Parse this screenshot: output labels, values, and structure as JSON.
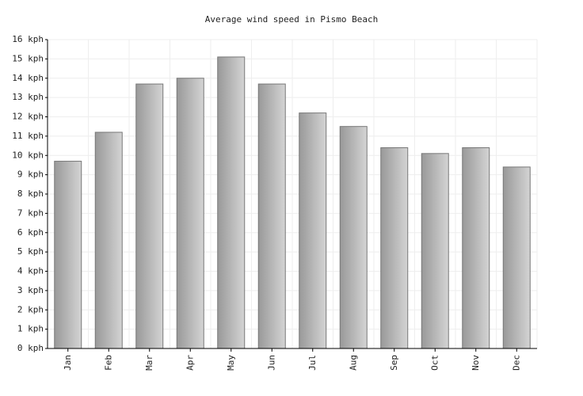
{
  "chart_data": {
    "type": "bar",
    "title": "Average wind speed in Pismo Beach",
    "categories": [
      "Jan",
      "Feb",
      "Mar",
      "Apr",
      "May",
      "Jun",
      "Jul",
      "Aug",
      "Sep",
      "Oct",
      "Nov",
      "Dec"
    ],
    "values": [
      9.7,
      11.2,
      13.7,
      14.0,
      15.1,
      13.7,
      12.2,
      11.5,
      10.4,
      10.1,
      10.4,
      9.4
    ],
    "color": "#999999",
    "ylim": [
      0,
      16
    ],
    "yticks": [
      {
        "value": 0,
        "label": "0 kph"
      },
      {
        "value": 1,
        "label": "1 kph"
      },
      {
        "value": 2,
        "label": "2 kph"
      },
      {
        "value": 3,
        "label": "3 kph"
      },
      {
        "value": 4,
        "label": "4 kph"
      },
      {
        "value": 5,
        "label": "5 kph"
      },
      {
        "value": 6,
        "label": "6 kph"
      },
      {
        "value": 7,
        "label": "7 kph"
      },
      {
        "value": 8,
        "label": "8 kph"
      },
      {
        "value": 9,
        "label": "9 kph"
      },
      {
        "value": 10,
        "label": "10 kph"
      },
      {
        "value": 11,
        "label": "11 kph"
      },
      {
        "value": 12,
        "label": "12 kph"
      },
      {
        "value": 13,
        "label": "13 kph"
      },
      {
        "value": 14,
        "label": "14 kph"
      },
      {
        "value": 15,
        "label": "15 kph"
      },
      {
        "value": 16,
        "label": "16 kph"
      }
    ],
    "grid": true
  }
}
